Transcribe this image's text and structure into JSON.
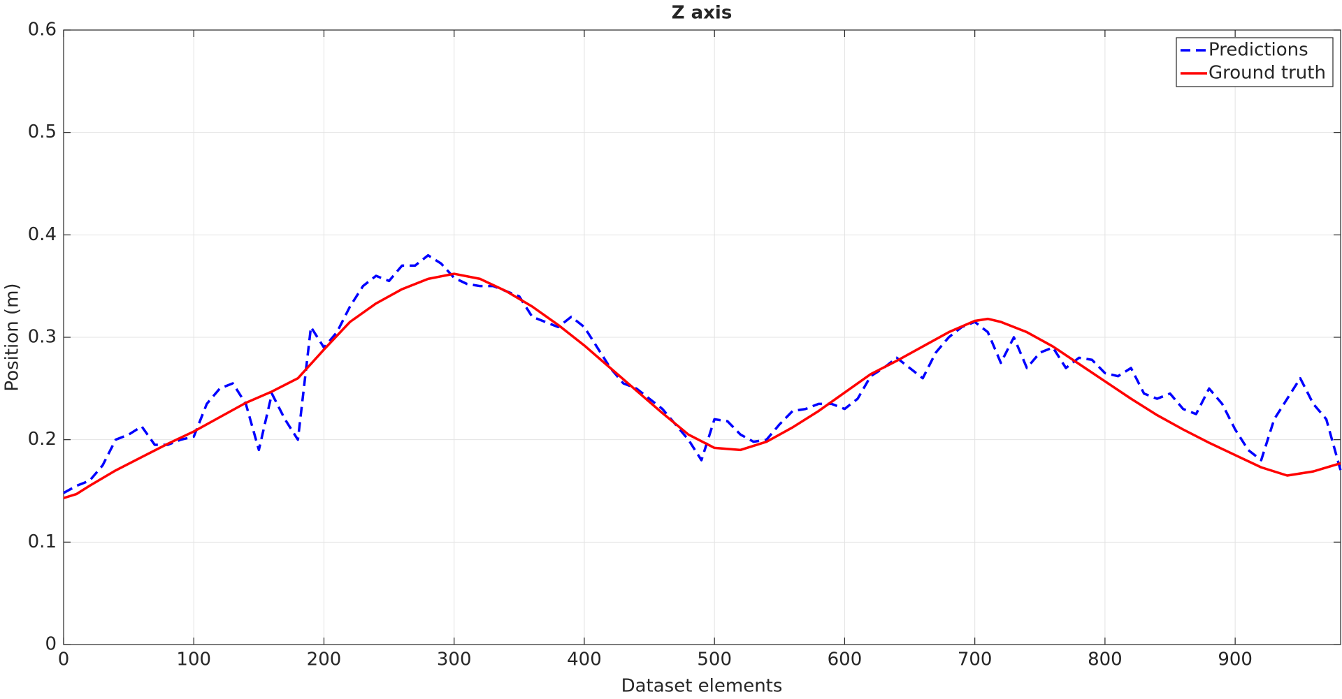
{
  "chart_data": {
    "type": "line",
    "title": "Z axis",
    "x_label": "Dataset elements",
    "y_label": "Position (m)",
    "xlim": [
      0,
      981
    ],
    "ylim": [
      0,
      0.6
    ],
    "xticks": [
      0,
      100,
      200,
      300,
      400,
      500,
      600,
      700,
      800,
      900
    ],
    "yticks": [
      0,
      0.1,
      0.2,
      0.3,
      0.4,
      0.5,
      0.6
    ],
    "grid": true,
    "legend": "upper right",
    "series": [
      {
        "name": "Predictions",
        "color": "#0000ff",
        "dash": true,
        "x": [
          0,
          10,
          20,
          30,
          40,
          50,
          60,
          70,
          80,
          90,
          100,
          110,
          120,
          130,
          140,
          150,
          160,
          170,
          180,
          190,
          200,
          210,
          220,
          230,
          240,
          250,
          260,
          270,
          280,
          290,
          300,
          310,
          320,
          330,
          340,
          350,
          360,
          370,
          380,
          390,
          400,
          410,
          420,
          430,
          440,
          450,
          460,
          470,
          480,
          490,
          500,
          510,
          520,
          530,
          540,
          550,
          560,
          570,
          580,
          590,
          600,
          610,
          620,
          630,
          640,
          650,
          660,
          670,
          680,
          690,
          700,
          710,
          720,
          730,
          740,
          750,
          760,
          770,
          780,
          790,
          800,
          810,
          820,
          830,
          840,
          850,
          860,
          870,
          880,
          890,
          900,
          910,
          920,
          930,
          940,
          950,
          960,
          970,
          981
        ],
        "values": [
          0.148,
          0.155,
          0.16,
          0.175,
          0.2,
          0.205,
          0.213,
          0.195,
          0.195,
          0.2,
          0.203,
          0.235,
          0.25,
          0.255,
          0.235,
          0.19,
          0.245,
          0.22,
          0.2,
          0.31,
          0.29,
          0.305,
          0.33,
          0.35,
          0.36,
          0.355,
          0.37,
          0.37,
          0.38,
          0.372,
          0.358,
          0.352,
          0.35,
          0.35,
          0.345,
          0.34,
          0.32,
          0.315,
          0.31,
          0.32,
          0.31,
          0.29,
          0.27,
          0.255,
          0.25,
          0.24,
          0.23,
          0.215,
          0.2,
          0.18,
          0.22,
          0.218,
          0.205,
          0.198,
          0.2,
          0.215,
          0.228,
          0.23,
          0.235,
          0.235,
          0.23,
          0.24,
          0.262,
          0.27,
          0.28,
          0.27,
          0.26,
          0.285,
          0.3,
          0.31,
          0.315,
          0.305,
          0.275,
          0.3,
          0.27,
          0.285,
          0.29,
          0.27,
          0.28,
          0.278,
          0.265,
          0.262,
          0.27,
          0.245,
          0.24,
          0.245,
          0.23,
          0.225,
          0.25,
          0.235,
          0.21,
          0.19,
          0.18,
          0.22,
          0.24,
          0.26,
          0.235,
          0.22,
          0.17
        ]
      },
      {
        "name": "Ground truth",
        "color": "#ff0000",
        "dash": false,
        "x": [
          0,
          10,
          20,
          40,
          60,
          80,
          100,
          120,
          140,
          160,
          180,
          200,
          220,
          240,
          260,
          280,
          300,
          320,
          340,
          360,
          380,
          400,
          420,
          440,
          460,
          480,
          500,
          520,
          540,
          560,
          580,
          600,
          620,
          640,
          660,
          680,
          700,
          710,
          720,
          740,
          760,
          780,
          800,
          820,
          840,
          860,
          880,
          900,
          920,
          940,
          960,
          981
        ],
        "values": [
          0.143,
          0.147,
          0.155,
          0.17,
          0.183,
          0.196,
          0.208,
          0.222,
          0.236,
          0.247,
          0.26,
          0.288,
          0.315,
          0.333,
          0.347,
          0.357,
          0.362,
          0.357,
          0.345,
          0.33,
          0.312,
          0.292,
          0.27,
          0.248,
          0.226,
          0.205,
          0.192,
          0.19,
          0.198,
          0.212,
          0.228,
          0.246,
          0.264,
          0.277,
          0.291,
          0.305,
          0.316,
          0.318,
          0.315,
          0.305,
          0.291,
          0.274,
          0.257,
          0.24,
          0.224,
          0.21,
          0.197,
          0.185,
          0.173,
          0.165,
          0.169,
          0.177
        ]
      }
    ]
  }
}
